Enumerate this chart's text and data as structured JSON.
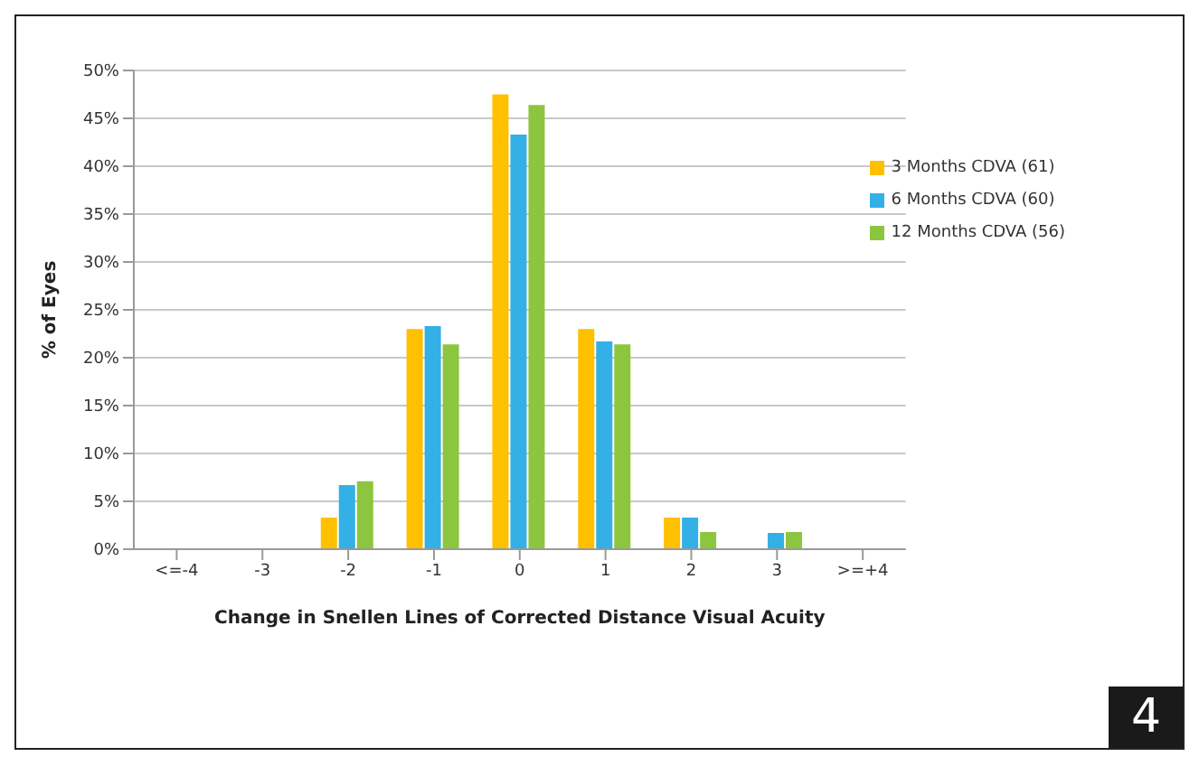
{
  "chart_data": {
    "type": "bar",
    "xlabel": "Change in Snellen Lines of Corrected Distance Visual Acuity",
    "ylabel": "% of Eyes",
    "categories": [
      "<=-4",
      "-3",
      "-2",
      "-1",
      "0",
      "1",
      "2",
      "3",
      ">=+4"
    ],
    "series": [
      {
        "name": "3 Months CDVA (61)",
        "color": "#ffc000",
        "values": [
          0,
          0,
          3.3,
          23.0,
          47.5,
          23.0,
          3.3,
          0,
          0
        ]
      },
      {
        "name": "6 Months CDVA (60)",
        "color": "#33b0e6",
        "values": [
          0,
          0,
          6.7,
          23.3,
          43.3,
          21.7,
          3.3,
          1.7,
          0
        ]
      },
      {
        "name": "12 Months CDVA (56)",
        "color": "#8cc63f",
        "values": [
          0,
          0,
          7.1,
          21.4,
          46.4,
          21.4,
          1.8,
          1.8,
          0
        ]
      }
    ],
    "ylim": [
      0,
      50
    ],
    "yticks": [
      {
        "value": 0,
        "label": "0%"
      },
      {
        "value": 5,
        "label": "5%"
      },
      {
        "value": 10,
        "label": "10%"
      },
      {
        "value": 15,
        "label": "15%"
      },
      {
        "value": 20,
        "label": "20%"
      },
      {
        "value": 25,
        "label": "25%"
      },
      {
        "value": 30,
        "label": "30%"
      },
      {
        "value": 35,
        "label": "35%"
      },
      {
        "value": 40,
        "label": "40%"
      },
      {
        "value": 45,
        "label": "45%"
      },
      {
        "value": 50,
        "label": "50%"
      }
    ],
    "grid": "y",
    "legend": "top right",
    "annotations": [
      "4"
    ]
  }
}
